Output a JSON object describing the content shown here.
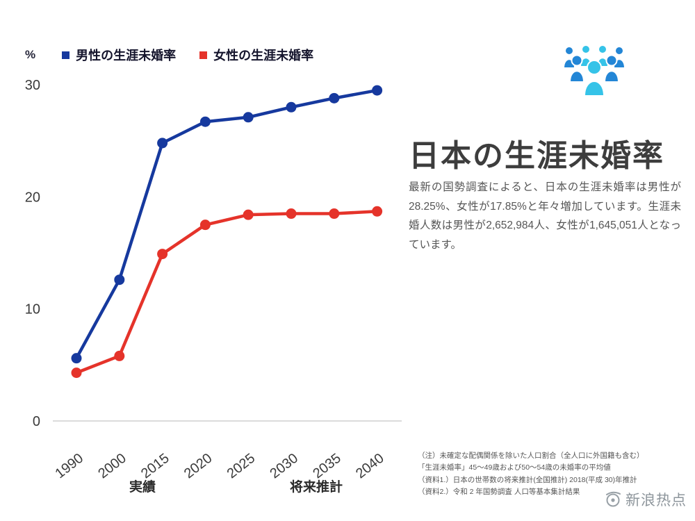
{
  "chart_data": {
    "type": "line",
    "unit_label": "%",
    "categories": [
      "1990",
      "2000",
      "2015",
      "2020",
      "2025",
      "2030",
      "2035",
      "2040"
    ],
    "series": [
      {
        "name": "男性の生涯未婚率",
        "color": "#16399e",
        "values": [
          5.6,
          12.6,
          24.8,
          26.7,
          27.1,
          28.0,
          28.8,
          29.5
        ]
      },
      {
        "name": "女性の生涯未婚率",
        "color": "#e5332a",
        "values": [
          4.3,
          5.8,
          14.9,
          17.5,
          18.4,
          18.5,
          18.5,
          18.7
        ]
      }
    ],
    "ylim": [
      0,
      30
    ],
    "yticks": [
      30,
      20,
      10,
      0
    ],
    "grid": false,
    "legend_position": "top",
    "group_labels": {
      "actual": "実績",
      "projection": "将来推計"
    }
  },
  "info": {
    "title": "日本の生涯未婚率",
    "description": "最新の国勢調査によると、日本の生涯未婚率は男性が28.25%、女性が17.85%と年々増加しています。生涯未婚人数は男性が2,652,984人、女性が1,645,051人となっています。",
    "notes": [
      "（注）未確定な配偶関係を除いた人口割合（全人口に外国籍も含む）",
      "「生涯未婚率」45〜49歳および50〜54歳の未婚率の平均値",
      "（資料1.）日本の世帯数の将来推計(全国推計) 2018(平成 30)年推計",
      "（資料2.）令和 2 年国勢調査 人口等基本集計結果"
    ]
  },
  "watermark": {
    "label": "新浪热点"
  }
}
